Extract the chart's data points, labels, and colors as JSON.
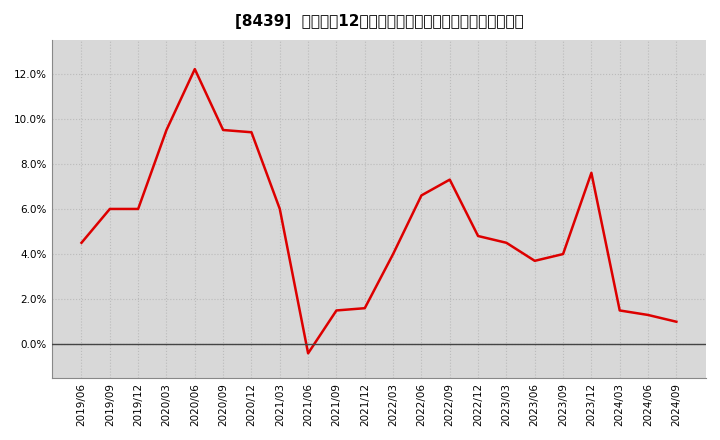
{
  "title": "[8439]  売上高の12か月移動合計の対前年同期増減率の推移",
  "x_labels": [
    "2019/06",
    "2019/09",
    "2019/12",
    "2020/03",
    "2020/06",
    "2020/09",
    "2020/12",
    "2021/03",
    "2021/06",
    "2021/09",
    "2021/12",
    "2022/03",
    "2022/06",
    "2022/09",
    "2022/12",
    "2023/03",
    "2023/06",
    "2023/09",
    "2023/12",
    "2024/03",
    "2024/06",
    "2024/09"
  ],
  "y_values": [
    0.045,
    0.06,
    0.06,
    0.095,
    0.122,
    0.095,
    0.094,
    0.06,
    -0.004,
    0.015,
    0.016,
    0.04,
    0.066,
    0.073,
    0.048,
    0.045,
    0.037,
    0.04,
    0.076,
    0.015,
    0.013,
    0.01
  ],
  "line_color": "#dd0000",
  "background_color": "#ffffff",
  "plot_bg_color": "#d8d8d8",
  "grid_color": "#bbbbbb",
  "ylim": [
    -0.015,
    0.135
  ],
  "yticks": [
    0.0,
    0.02,
    0.04,
    0.06,
    0.08,
    0.1,
    0.12
  ],
  "title_fontsize": 11,
  "axis_fontsize": 7.5
}
